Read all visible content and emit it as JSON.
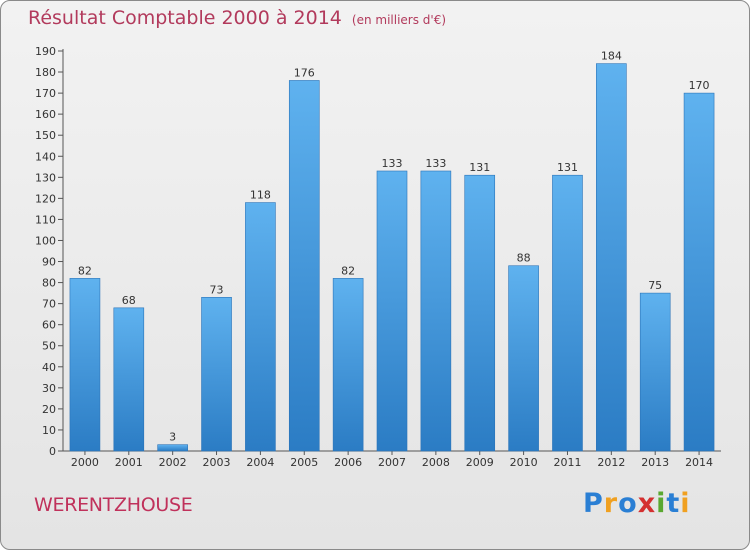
{
  "chart_data": {
    "type": "bar",
    "title": "Résultat Comptable 2000 à 2014",
    "subtitle": "(en milliers d'€)",
    "categories": [
      "2000",
      "2001",
      "2002",
      "2003",
      "2004",
      "2005",
      "2006",
      "2007",
      "2008",
      "2009",
      "2010",
      "2011",
      "2012",
      "2013",
      "2014"
    ],
    "values": [
      82,
      68,
      3,
      73,
      118,
      176,
      82,
      133,
      133,
      131,
      88,
      131,
      184,
      75,
      170
    ],
    "ylim": [
      0,
      190
    ],
    "yticks": [
      0,
      10,
      20,
      30,
      40,
      50,
      60,
      70,
      80,
      90,
      100,
      110,
      120,
      130,
      140,
      150,
      160,
      170,
      180,
      190
    ],
    "xlabel": "",
    "ylabel": "",
    "grid": false,
    "bar_color": "#3a8fd6"
  },
  "commune": "WERENTZHOUSE",
  "logo": {
    "text": "Proxiti",
    "letters": [
      "P",
      "r",
      "o",
      "x",
      "i",
      "t",
      "i"
    ],
    "colors": [
      "#2a7fd4",
      "#f0a020",
      "#2a7fd4",
      "#d43030",
      "#5aa830",
      "#2a7fd4",
      "#f0a020"
    ]
  }
}
